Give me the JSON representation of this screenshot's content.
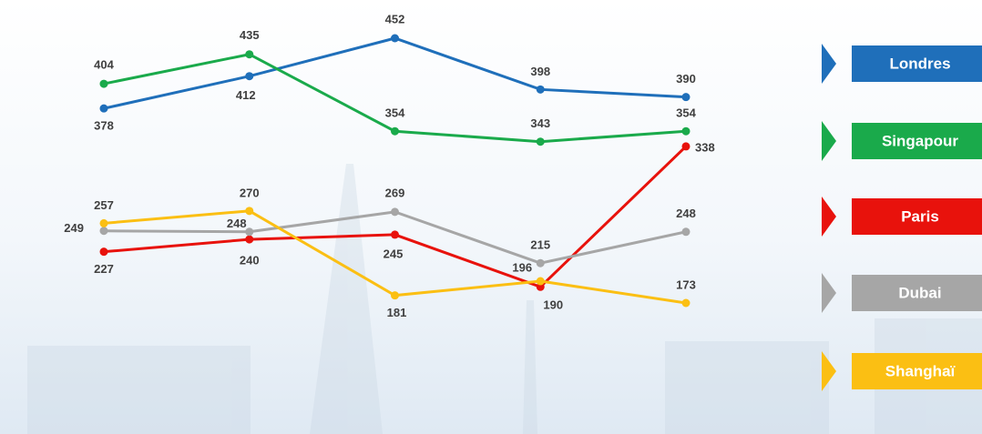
{
  "chart_data": {
    "type": "line",
    "categories": [
      null,
      null,
      null,
      null,
      null
    ],
    "series": [
      {
        "name": "Londres",
        "color": "#1f6fba",
        "values": [
          378,
          412,
          452,
          398,
          390
        ]
      },
      {
        "name": "Singapour",
        "color": "#1aaa4b",
        "values": [
          404,
          435,
          354,
          343,
          354
        ]
      },
      {
        "name": "Paris",
        "color": "#e8120c",
        "values": [
          227,
          240,
          245,
          190,
          338
        ]
      },
      {
        "name": "Dubai",
        "color": "#a6a6a6",
        "values": [
          249,
          248,
          269,
          215,
          248
        ]
      },
      {
        "name": "Shanghaï",
        "color": "#fbbf13",
        "values": [
          257,
          270,
          181,
          196,
          173
        ]
      }
    ]
  }
}
